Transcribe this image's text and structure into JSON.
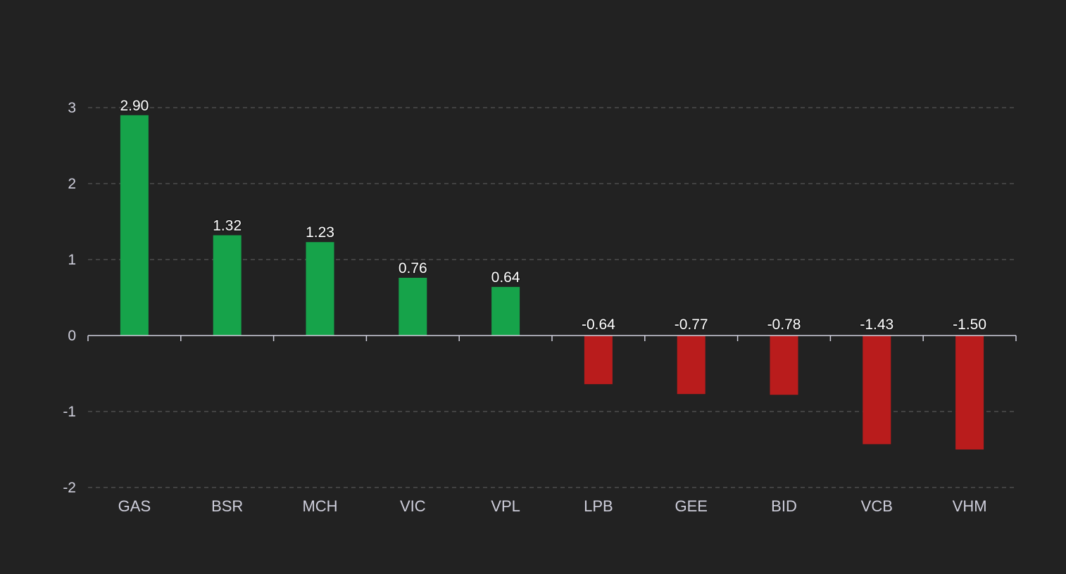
{
  "chart_data": {
    "type": "bar",
    "title": "",
    "xlabel": "",
    "ylabel": "",
    "categories": [
      "GAS",
      "BSR",
      "MCH",
      "VIC",
      "VPL",
      "LPB",
      "GEE",
      "BID",
      "VCB",
      "VHM"
    ],
    "values": [
      2.9,
      1.32,
      1.23,
      0.76,
      0.64,
      -0.64,
      -0.77,
      -0.78,
      -1.43,
      -1.5
    ],
    "data_labels": [
      "2.90",
      "1.32",
      "1.23",
      "0.76",
      "0.64",
      "-0.64",
      "-0.77",
      "-0.78",
      "-1.43",
      "-1.50"
    ],
    "ylim": [
      -2,
      3
    ],
    "yticks": [
      3,
      2,
      1,
      0,
      -1,
      -2
    ],
    "grid": true,
    "legend": "none",
    "colors": {
      "positive": "#16a34a",
      "negative": "#b91c1c",
      "background": "#222222",
      "axis_text": "#cfcfdc",
      "label_text": "#ffffff"
    }
  }
}
